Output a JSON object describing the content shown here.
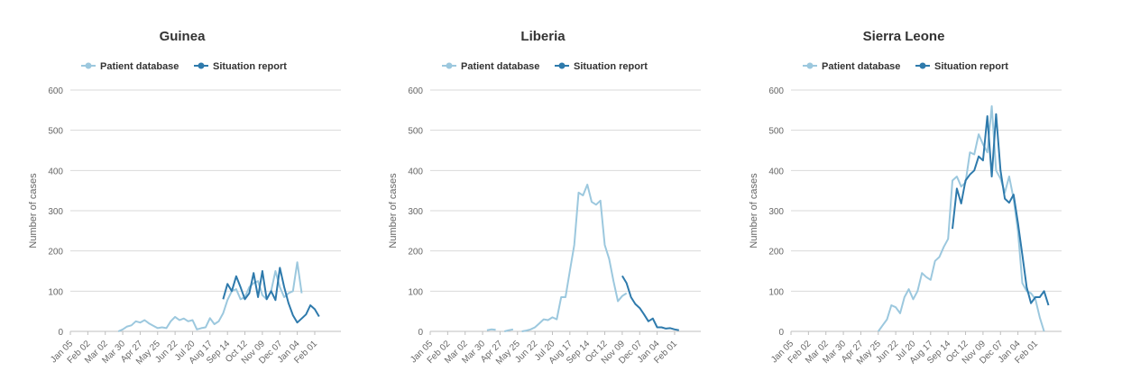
{
  "colors": {
    "patient_database": "#9cc8de",
    "situation_report": "#2e7aac"
  },
  "legend": {
    "patient_database": "Patient database",
    "situation_report": "Situation report"
  },
  "chart_data": [
    {
      "type": "line",
      "title": "Guinea",
      "ylabel": "Number of cases",
      "xlabel": "",
      "ylim": [
        0,
        600
      ],
      "yticks": [
        "0",
        "100",
        "200",
        "300",
        "400",
        "500",
        "600"
      ],
      "xtick_labels": [
        "Jan 05",
        "Feb 02",
        "Mar 02",
        "Mar 30",
        "Apr 27",
        "May 25",
        "Jun 22",
        "Jul 20",
        "Aug 17",
        "Sep 14",
        "Oct 12",
        "Nov 09",
        "Dec 07",
        "Jan 04",
        "Feb 01"
      ],
      "legend_position": "top-left",
      "grid": true,
      "series": [
        {
          "name": "Patient database",
          "start_week": 11,
          "values": [
            0,
            5,
            12,
            15,
            25,
            22,
            28,
            20,
            14,
            8,
            10,
            8,
            25,
            36,
            28,
            32,
            25,
            28,
            5,
            8,
            10,
            33,
            18,
            25,
            45,
            78,
            100,
            105,
            80,
            85,
            110,
            120,
            125,
            90,
            80,
            100,
            150,
            110,
            85,
            95,
            100,
            172,
            95
          ]
        },
        {
          "name": "Situation report",
          "start_week": 35,
          "values": [
            80,
            118,
            100,
            137,
            110,
            80,
            95,
            145,
            85,
            150,
            80,
            100,
            78,
            158,
            110,
            70,
            40,
            22,
            32,
            42,
            65,
            55,
            37
          ]
        }
      ]
    },
    {
      "type": "line",
      "title": "Liberia",
      "ylabel": "Number of cases",
      "xlabel": "",
      "ylim": [
        0,
        600
      ],
      "yticks": [
        "0",
        "100",
        "200",
        "300",
        "400",
        "500",
        "600"
      ],
      "xtick_labels": [
        "Jan 05",
        "Feb 02",
        "Mar 02",
        "Mar 30",
        "Apr 27",
        "May 25",
        "Jun 22",
        "Jul 20",
        "Aug 17",
        "Sep 14",
        "Oct 12",
        "Nov 09",
        "Dec 07",
        "Jan 04",
        "Feb 01"
      ],
      "legend_position": "top-left",
      "grid": true,
      "series": [
        {
          "name": "Patient database",
          "start_week": 13,
          "values": [
            3,
            5,
            4,
            null,
            0,
            3,
            5,
            null,
            0,
            2,
            5,
            10,
            20,
            30,
            28,
            35,
            30,
            85,
            85,
            150,
            215,
            345,
            338,
            365,
            322,
            315,
            325,
            215,
            180,
            125,
            75,
            88,
            95
          ]
        },
        {
          "name": "Situation report",
          "start_week": 44,
          "values": [
            138,
            120,
            85,
            68,
            58,
            42,
            25,
            32,
            10,
            10,
            7,
            8,
            5,
            3
          ]
        }
      ]
    },
    {
      "type": "line",
      "title": "Sierra Leone",
      "ylabel": "Number of cases",
      "xlabel": "",
      "ylim": [
        0,
        600
      ],
      "yticks": [
        "0",
        "100",
        "200",
        "300",
        "400",
        "500",
        "600"
      ],
      "xtick_labels": [
        "Jan 05",
        "Feb 02",
        "Mar 02",
        "Mar 30",
        "Apr 27",
        "May 25",
        "Jun 22",
        "Jul 20",
        "Aug 17",
        "Sep 14",
        "Oct 12",
        "Nov 09",
        "Dec 07",
        "Jan 04",
        "Feb 01"
      ],
      "legend_position": "top-left",
      "grid": true,
      "series": [
        {
          "name": "Patient database",
          "start_week": 20,
          "values": [
            0,
            15,
            30,
            65,
            60,
            45,
            85,
            105,
            80,
            100,
            145,
            135,
            128,
            175,
            185,
            210,
            230,
            375,
            385,
            360,
            370,
            445,
            440,
            490,
            465,
            445,
            560,
            400,
            380,
            345,
            385,
            330,
            250,
            120,
            100,
            95,
            80,
            35,
            0
          ]
        },
        {
          "name": "Situation report",
          "start_week": 37,
          "values": [
            255,
            355,
            318,
            375,
            390,
            400,
            435,
            425,
            535,
            385,
            540,
            400,
            330,
            320,
            340,
            270,
            190,
            110,
            70,
            85,
            85,
            100,
            65
          ]
        }
      ]
    }
  ]
}
